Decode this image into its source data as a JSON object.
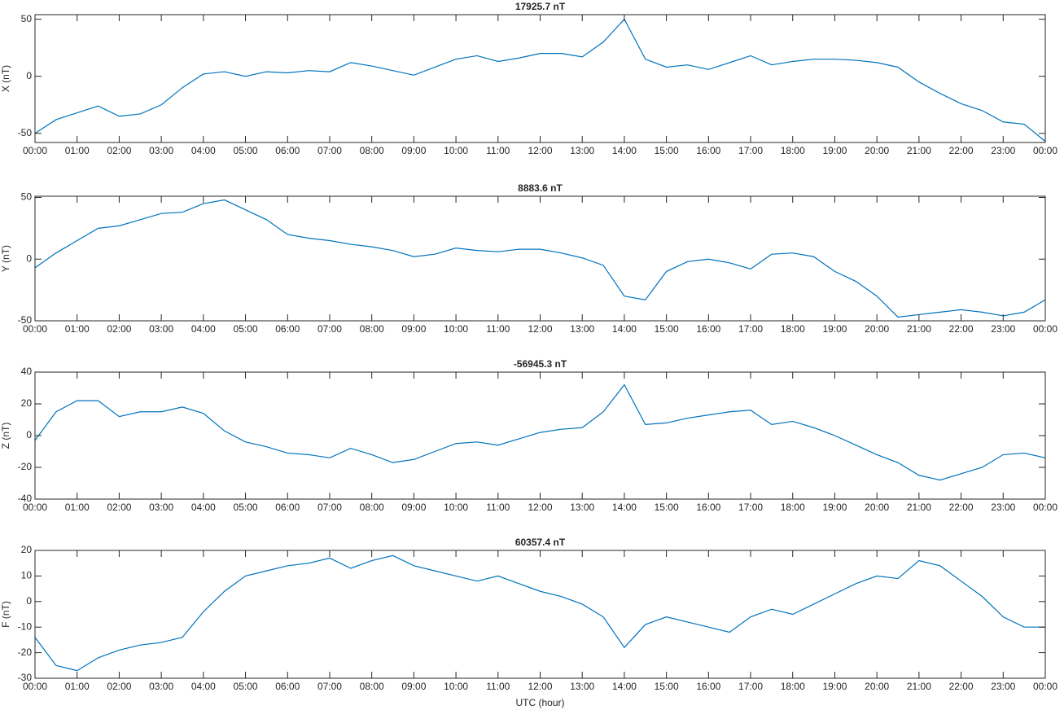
{
  "chart_data": [
    {
      "type": "line",
      "title": "17925.7 nT",
      "ylabel": "X (nT)",
      "color": "#0072bd",
      "x": [
        0,
        0.5,
        1,
        1.5,
        2,
        2.5,
        3,
        3.5,
        4,
        4.5,
        5,
        5.5,
        6,
        6.5,
        7,
        7.5,
        8,
        8.5,
        9,
        9.5,
        10,
        10.5,
        11,
        11.5,
        12,
        12.5,
        13,
        13.5,
        14,
        14.5,
        15,
        15.5,
        16,
        16.5,
        17,
        17.5,
        18,
        18.5,
        19,
        19.5,
        20,
        20.5,
        21,
        21.5,
        22,
        22.5,
        23,
        23.5,
        24
      ],
      "values": [
        -50,
        -38,
        -32,
        -26,
        -35,
        -33,
        -25,
        -10,
        2,
        4,
        0,
        4,
        3,
        5,
        4,
        12,
        9,
        5,
        1,
        8,
        15,
        18,
        13,
        16,
        20,
        20,
        17,
        30,
        50,
        15,
        8,
        10,
        6,
        12,
        18,
        10,
        13,
        15,
        15,
        14,
        12,
        8,
        -5,
        -15,
        -24,
        -30,
        -40,
        -42,
        -57
      ],
      "xlim": [
        0,
        24
      ],
      "ylim": [
        -58,
        54
      ],
      "yticks": [
        -50,
        0,
        50
      ],
      "xticks": [
        {
          "value": 0,
          "label": "00:00"
        },
        {
          "value": 1,
          "label": "01:00"
        },
        {
          "value": 2,
          "label": "02:00"
        },
        {
          "value": 3,
          "label": "03:00"
        },
        {
          "value": 4,
          "label": "04:00"
        },
        {
          "value": 5,
          "label": "05:00"
        },
        {
          "value": 6,
          "label": "06:00"
        },
        {
          "value": 7,
          "label": "07:00"
        },
        {
          "value": 8,
          "label": "08:00"
        },
        {
          "value": 9,
          "label": "09:00"
        },
        {
          "value": 10,
          "label": "10:00"
        },
        {
          "value": 11,
          "label": "11:00"
        },
        {
          "value": 12,
          "label": "12:00"
        },
        {
          "value": 13,
          "label": "13:00"
        },
        {
          "value": 14,
          "label": "14:00"
        },
        {
          "value": 15,
          "label": "15:00"
        },
        {
          "value": 16,
          "label": "16:00"
        },
        {
          "value": 17,
          "label": "17:00"
        },
        {
          "value": 18,
          "label": "18:00"
        },
        {
          "value": 19,
          "label": "19:00"
        },
        {
          "value": 20,
          "label": "20:00"
        },
        {
          "value": 21,
          "label": "21:00"
        },
        {
          "value": 22,
          "label": "22:00"
        },
        {
          "value": 23,
          "label": "23:00"
        },
        {
          "value": 24,
          "label": "00:00"
        }
      ]
    },
    {
      "type": "line",
      "title": "8883.6 nT",
      "ylabel": "Y (nT)",
      "color": "#0072bd",
      "x": [
        0,
        0.5,
        1,
        1.5,
        2,
        2.5,
        3,
        3.5,
        4,
        4.5,
        5,
        5.5,
        6,
        6.5,
        7,
        7.5,
        8,
        8.5,
        9,
        9.5,
        10,
        10.5,
        11,
        11.5,
        12,
        12.5,
        13,
        13.5,
        14,
        14.5,
        15,
        15.5,
        16,
        16.5,
        17,
        17.5,
        18,
        18.5,
        19,
        19.5,
        20,
        20.5,
        21,
        21.5,
        22,
        22.5,
        23,
        23.5,
        24
      ],
      "values": [
        -7,
        5,
        15,
        25,
        27,
        32,
        37,
        38,
        45,
        48,
        40,
        32,
        20,
        17,
        15,
        12,
        10,
        7,
        2,
        4,
        9,
        7,
        6,
        8,
        8,
        5,
        1,
        -5,
        -30,
        -33,
        -10,
        -2,
        0,
        -3,
        -8,
        4,
        5,
        2,
        -10,
        -18,
        -30,
        -47,
        -45,
        -43,
        -41,
        -43,
        -46,
        -43,
        -33
      ],
      "xlim": [
        0,
        24
      ],
      "ylim": [
        -50,
        51
      ],
      "yticks": [
        -50,
        0,
        50
      ],
      "xticks": [
        {
          "value": 0,
          "label": "00:00"
        },
        {
          "value": 1,
          "label": "01:00"
        },
        {
          "value": 2,
          "label": "02:00"
        },
        {
          "value": 3,
          "label": "03:00"
        },
        {
          "value": 4,
          "label": "04:00"
        },
        {
          "value": 5,
          "label": "05:00"
        },
        {
          "value": 6,
          "label": "06:00"
        },
        {
          "value": 7,
          "label": "07:00"
        },
        {
          "value": 8,
          "label": "08:00"
        },
        {
          "value": 9,
          "label": "09:00"
        },
        {
          "value": 10,
          "label": "10:00"
        },
        {
          "value": 11,
          "label": "11:00"
        },
        {
          "value": 12,
          "label": "12:00"
        },
        {
          "value": 13,
          "label": "13:00"
        },
        {
          "value": 14,
          "label": "14:00"
        },
        {
          "value": 15,
          "label": "15:00"
        },
        {
          "value": 16,
          "label": "16:00"
        },
        {
          "value": 17,
          "label": "17:00"
        },
        {
          "value": 18,
          "label": "18:00"
        },
        {
          "value": 19,
          "label": "19:00"
        },
        {
          "value": 20,
          "label": "20:00"
        },
        {
          "value": 21,
          "label": "21:00"
        },
        {
          "value": 22,
          "label": "22:00"
        },
        {
          "value": 23,
          "label": "23:00"
        },
        {
          "value": 24,
          "label": "00:00"
        }
      ]
    },
    {
      "type": "line",
      "title": "-56945.3 nT",
      "ylabel": "Z (nT)",
      "color": "#0072bd",
      "x": [
        0,
        0.5,
        1,
        1.5,
        2,
        2.5,
        3,
        3.5,
        4,
        4.5,
        5,
        5.5,
        6,
        6.5,
        7,
        7.5,
        8,
        8.5,
        9,
        9.5,
        10,
        10.5,
        11,
        11.5,
        12,
        12.5,
        13,
        13.5,
        14,
        14.5,
        15,
        15.5,
        16,
        16.5,
        17,
        17.5,
        18,
        18.5,
        19,
        19.5,
        20,
        20.5,
        21,
        21.5,
        22,
        22.5,
        23,
        23.5,
        24
      ],
      "values": [
        -3,
        15,
        22,
        22,
        12,
        15,
        15,
        18,
        14,
        3,
        -4,
        -7,
        -11,
        -12,
        -14,
        -8,
        -12,
        -17,
        -15,
        -10,
        -5,
        -4,
        -6,
        -2,
        2,
        4,
        5,
        15,
        32,
        7,
        8,
        11,
        13,
        15,
        16,
        7,
        9,
        5,
        0,
        -6,
        -12,
        -17,
        -25,
        -28,
        -24,
        -20,
        -12,
        -11,
        -14
      ],
      "xlim": [
        0,
        24
      ],
      "ylim": [
        -40,
        40
      ],
      "yticks": [
        -40,
        -20,
        0,
        20,
        40
      ],
      "xticks": [
        {
          "value": 0,
          "label": "00:00"
        },
        {
          "value": 1,
          "label": "01:00"
        },
        {
          "value": 2,
          "label": "02:00"
        },
        {
          "value": 3,
          "label": "03:00"
        },
        {
          "value": 4,
          "label": "04:00"
        },
        {
          "value": 5,
          "label": "05:00"
        },
        {
          "value": 6,
          "label": "06:00"
        },
        {
          "value": 7,
          "label": "07:00"
        },
        {
          "value": 8,
          "label": "08:00"
        },
        {
          "value": 9,
          "label": "09:00"
        },
        {
          "value": 10,
          "label": "10:00"
        },
        {
          "value": 11,
          "label": "11:00"
        },
        {
          "value": 12,
          "label": "12:00"
        },
        {
          "value": 13,
          "label": "13:00"
        },
        {
          "value": 14,
          "label": "14:00"
        },
        {
          "value": 15,
          "label": "15:00"
        },
        {
          "value": 16,
          "label": "16:00"
        },
        {
          "value": 17,
          "label": "17:00"
        },
        {
          "value": 18,
          "label": "18:00"
        },
        {
          "value": 19,
          "label": "19:00"
        },
        {
          "value": 20,
          "label": "20:00"
        },
        {
          "value": 21,
          "label": "21:00"
        },
        {
          "value": 22,
          "label": "22:00"
        },
        {
          "value": 23,
          "label": "23:00"
        },
        {
          "value": 24,
          "label": "00:00"
        }
      ]
    },
    {
      "type": "line",
      "title": "60357.4 nT",
      "ylabel": "F (nT)",
      "xlabel": "UTC (hour)",
      "color": "#0072bd",
      "x": [
        0,
        0.5,
        1,
        1.5,
        2,
        2.5,
        3,
        3.5,
        4,
        4.5,
        5,
        5.5,
        6,
        6.5,
        7,
        7.5,
        8,
        8.5,
        9,
        9.5,
        10,
        10.5,
        11,
        11.5,
        12,
        12.5,
        13,
        13.5,
        14,
        14.5,
        15,
        15.5,
        16,
        16.5,
        17,
        17.5,
        18,
        18.5,
        19,
        19.5,
        20,
        20.5,
        21,
        21.5,
        22,
        22.5,
        23,
        23.5,
        24
      ],
      "values": [
        -14,
        -25,
        -27,
        -22,
        -19,
        -17,
        -16,
        -14,
        -4,
        4,
        10,
        12,
        14,
        15,
        17,
        13,
        16,
        18,
        14,
        12,
        10,
        8,
        10,
        7,
        4,
        2,
        -1,
        -6,
        -18,
        -9,
        -6,
        -8,
        -10,
        -12,
        -6,
        -3,
        -5,
        -1,
        3,
        7,
        10,
        9,
        16,
        14,
        8,
        2,
        -6,
        -10,
        -10
      ],
      "xlim": [
        0,
        24
      ],
      "ylim": [
        -30,
        20
      ],
      "yticks": [
        -30,
        -20,
        -10,
        0,
        10,
        20
      ],
      "xticks": [
        {
          "value": 0,
          "label": "00:00"
        },
        {
          "value": 1,
          "label": "01:00"
        },
        {
          "value": 2,
          "label": "02:00"
        },
        {
          "value": 3,
          "label": "03:00"
        },
        {
          "value": 4,
          "label": "04:00"
        },
        {
          "value": 5,
          "label": "05:00"
        },
        {
          "value": 6,
          "label": "06:00"
        },
        {
          "value": 7,
          "label": "07:00"
        },
        {
          "value": 8,
          "label": "08:00"
        },
        {
          "value": 9,
          "label": "09:00"
        },
        {
          "value": 10,
          "label": "10:00"
        },
        {
          "value": 11,
          "label": "11:00"
        },
        {
          "value": 12,
          "label": "12:00"
        },
        {
          "value": 13,
          "label": "13:00"
        },
        {
          "value": 14,
          "label": "14:00"
        },
        {
          "value": 15,
          "label": "15:00"
        },
        {
          "value": 16,
          "label": "16:00"
        },
        {
          "value": 17,
          "label": "17:00"
        },
        {
          "value": 18,
          "label": "18:00"
        },
        {
          "value": 19,
          "label": "19:00"
        },
        {
          "value": 20,
          "label": "20:00"
        },
        {
          "value": 21,
          "label": "21:00"
        },
        {
          "value": 22,
          "label": "22:00"
        },
        {
          "value": 23,
          "label": "23:00"
        },
        {
          "value": 24,
          "label": "00:00"
        }
      ]
    }
  ]
}
